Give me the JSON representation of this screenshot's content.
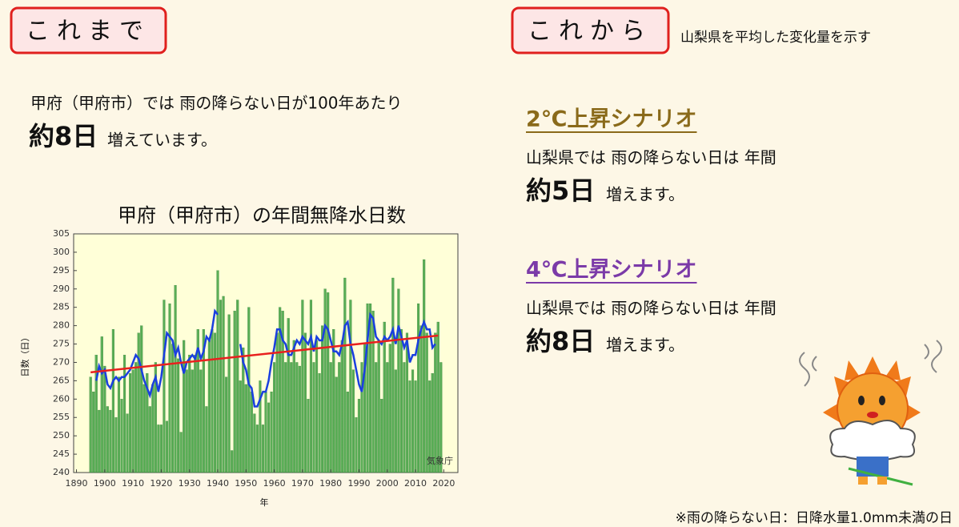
{
  "left": {
    "badge": "これまで",
    "line1": "甲府（甲府市）では 雨の降らない日が100年あたり",
    "big": "約8日",
    "rest": "増えています。"
  },
  "right": {
    "badge": "これから",
    "note": "山梨県を平均した変化量を示す",
    "scenarios": [
      {
        "title": "2℃上昇シナリオ",
        "color": "#8a6a1a",
        "line": "山梨県では 雨の降らない日は 年間",
        "big": "約5日",
        "rest": "増えます。"
      },
      {
        "title": "4℃上昇シナリオ",
        "color": "#7b3aa8",
        "line": "山梨県では 雨の降らない日は 年間",
        "big": "約8日",
        "rest": "増えます。"
      }
    ]
  },
  "footnote": "※雨の降らない日：日降水量1.0mm未満の日",
  "chart_data": {
    "type": "bar",
    "title": "甲府（甲府市）の年間無降水日数",
    "ylabel": "日数（日）",
    "xlabel": "年",
    "source": "気象庁",
    "xlim": [
      1889,
      2025
    ],
    "xticks": [
      1890,
      1900,
      1910,
      1920,
      1930,
      1940,
      1950,
      1960,
      1970,
      1980,
      1990,
      2000,
      2010,
      2020
    ],
    "ylim": [
      240,
      305
    ],
    "yticks": [
      240,
      245,
      250,
      255,
      260,
      265,
      270,
      275,
      280,
      285,
      290,
      295,
      300,
      305
    ],
    "color": "#4aa64a",
    "x": [
      1895,
      1896,
      1897,
      1898,
      1899,
      1900,
      1901,
      1902,
      1903,
      1904,
      1905,
      1906,
      1907,
      1908,
      1909,
      1910,
      1911,
      1912,
      1913,
      1914,
      1915,
      1916,
      1917,
      1918,
      1919,
      1920,
      1921,
      1922,
      1923,
      1924,
      1925,
      1926,
      1927,
      1928,
      1929,
      1930,
      1931,
      1932,
      1933,
      1934,
      1935,
      1936,
      1937,
      1938,
      1939,
      1940,
      1941,
      1942,
      1943,
      1944,
      1945,
      1946,
      1947,
      1948,
      1949,
      1950,
      1951,
      1952,
      1953,
      1954,
      1955,
      1956,
      1957,
      1958,
      1959,
      1960,
      1961,
      1962,
      1963,
      1964,
      1965,
      1966,
      1967,
      1968,
      1969,
      1970,
      1971,
      1972,
      1973,
      1974,
      1975,
      1976,
      1977,
      1978,
      1979,
      1980,
      1981,
      1982,
      1983,
      1984,
      1985,
      1986,
      1987,
      1988,
      1989,
      1990,
      1991,
      1992,
      1993,
      1994,
      1995,
      1996,
      1997,
      1998,
      1999,
      2000,
      2001,
      2002,
      2003,
      2004,
      2005,
      2006,
      2007,
      2008,
      2009,
      2010,
      2011,
      2012,
      2013,
      2014,
      2015,
      2016,
      2017,
      2018,
      2019
    ],
    "values": [
      266,
      262,
      272,
      257,
      277,
      269,
      258,
      257,
      279,
      255,
      266,
      260,
      272,
      256,
      267,
      268,
      270,
      278,
      280,
      264,
      267,
      258,
      264,
      270,
      253,
      253,
      287,
      254,
      286,
      275,
      291,
      271,
      251,
      276,
      268,
      272,
      268,
      272,
      279,
      268,
      279,
      258,
      276,
      279,
      278,
      295,
      287,
      288,
      266,
      283,
      246,
      284,
      287,
      265,
      274,
      264,
      285,
      262,
      256,
      253,
      265,
      253,
      262,
      259,
      262,
      270,
      278,
      285,
      284,
      270,
      282,
      270,
      276,
      270,
      269,
      287,
      278,
      260,
      287,
      270,
      276,
      267,
      280,
      290,
      289,
      270,
      279,
      266,
      270,
      276,
      293,
      262,
      287,
      268,
      255,
      260,
      270,
      275,
      286,
      286,
      284,
      270,
      276,
      260,
      281,
      270,
      275,
      293,
      268,
      290,
      279,
      270,
      278,
      265,
      268,
      265,
      286,
      280,
      298,
      278,
      265,
      267,
      278,
      281,
      270
    ],
    "lines": [
      {
        "color": "#1a3fe0",
        "values": [
          null,
          null,
          265,
          269,
          267,
          268,
          264,
          263,
          265,
          266,
          265,
          266,
          266,
          267,
          268,
          270,
          272,
          271,
          268,
          265,
          263,
          261,
          264,
          266,
          262,
          266,
          272,
          278,
          277,
          276,
          272,
          274,
          270,
          267,
          270,
          271,
          272,
          271,
          274,
          271,
          273,
          277,
          276,
          279,
          284,
          283,
          null,
          null,
          null,
          null,
          null,
          null,
          null,
          275,
          270,
          268,
          264,
          263,
          258,
          258,
          260,
          262,
          262,
          265,
          270,
          274,
          279,
          279,
          276,
          275,
          272,
          272,
          274,
          276,
          275,
          277,
          276,
          275,
          277,
          273,
          277,
          276,
          276,
          280,
          279,
          276,
          273,
          273,
          272,
          275,
          280,
          281,
          275,
          272,
          268,
          264,
          262,
          268,
          276,
          283,
          282,
          277,
          276,
          275,
          277,
          276,
          277,
          279,
          275,
          280,
          277,
          274,
          276,
          270,
          272,
          272,
          276,
          279,
          281,
          279,
          279,
          274,
          275,
          null,
          null
        ]
      },
      {
        "color": "#e8201e",
        "x": [
          1895,
          2018
        ],
        "values": [
          267.3,
          277.3
        ]
      }
    ]
  }
}
